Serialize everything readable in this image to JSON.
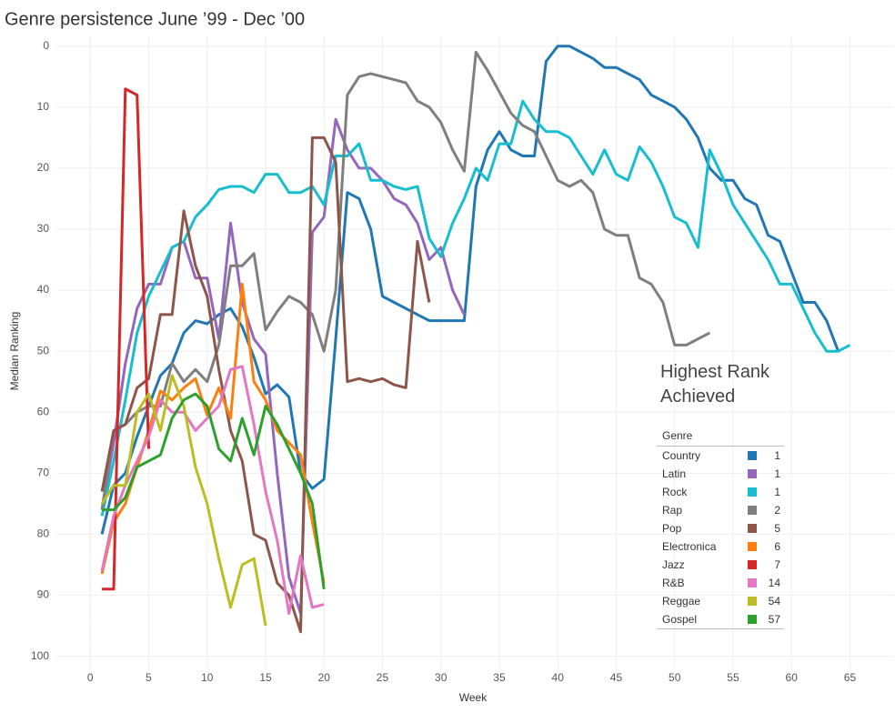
{
  "chart_data": {
    "type": "line",
    "title": "Genre persistence June ’99 - Dec ’00",
    "x_label": "Week",
    "y_label": "Median Ranking",
    "legend_title": "Highest Rank Achieved",
    "legend_header": "Genre",
    "x": [
      1,
      2,
      3,
      4,
      5,
      6,
      7,
      8,
      9,
      10,
      11,
      12,
      13,
      14,
      15,
      16,
      17,
      18,
      19,
      20,
      21,
      22,
      23,
      24,
      25,
      26,
      27,
      28,
      29,
      30,
      31,
      32,
      33,
      34,
      35,
      36,
      37,
      38,
      39,
      40,
      41,
      42,
      43,
      44,
      45,
      46,
      47,
      48,
      49,
      50,
      51,
      52,
      53,
      54,
      55,
      56,
      57,
      58,
      59,
      60,
      61,
      62,
      63,
      64,
      65
    ],
    "xlim": [
      -2.9,
      68.7
    ],
    "xticks": [
      0,
      5,
      10,
      15,
      20,
      25,
      30,
      35,
      40,
      45,
      50,
      55,
      60,
      65
    ],
    "ylim": [
      102,
      -1.6
    ],
    "yticks": [
      0,
      10,
      20,
      30,
      40,
      50,
      60,
      70,
      80,
      90,
      100
    ],
    "grid": true,
    "series": [
      {
        "name": "Country",
        "color": "#1f77b4",
        "best": 1,
        "values": [
          80,
          72,
          70,
          64,
          59,
          54,
          52,
          47,
          45,
          45.5,
          44,
          43,
          46,
          51,
          57,
          55.5,
          57.5,
          70,
          72.5,
          71,
          48,
          24,
          25,
          30,
          41,
          42,
          43,
          44,
          45,
          45,
          45,
          45,
          23,
          17,
          14,
          17,
          18,
          18,
          2.5,
          0,
          0,
          1,
          2,
          3.5,
          3.5,
          4.5,
          5.5,
          8,
          9,
          10,
          12,
          15,
          20,
          22,
          22,
          25,
          26,
          31,
          32,
          37,
          42,
          42,
          45,
          50,
          null
        ]
      },
      {
        "name": "Latin",
        "color": "#9467bd",
        "best": 1,
        "values": [
          76,
          65,
          52,
          43,
          39,
          39,
          33,
          32,
          38,
          38,
          48,
          29,
          42,
          48,
          50.5,
          70,
          87,
          93,
          30.5,
          28,
          12,
          17,
          20,
          20,
          22,
          25,
          26,
          29,
          35,
          33,
          40,
          44,
          null,
          null,
          null,
          null,
          null,
          null,
          null,
          null,
          null,
          null,
          null,
          null,
          null,
          null,
          null,
          null,
          null,
          null,
          null,
          null,
          null,
          null,
          null,
          null,
          null,
          null,
          null,
          null,
          null,
          null,
          null,
          null,
          null
        ]
      },
      {
        "name": "Rock",
        "color": "#17becf",
        "best": 1,
        "values": [
          77,
          68,
          58,
          47,
          41,
          37,
          33,
          32,
          28,
          26,
          23.5,
          23,
          23,
          24,
          21,
          21,
          24,
          24,
          23,
          26,
          18,
          18,
          16,
          22,
          22,
          23,
          23.5,
          23,
          31.5,
          34.5,
          29,
          25,
          20,
          22,
          16,
          16,
          9,
          12,
          14,
          14,
          15,
          18,
          21,
          17,
          21,
          22,
          16.5,
          19,
          23,
          28,
          29,
          33,
          17,
          21,
          26,
          29,
          32,
          35,
          39,
          39,
          43,
          47,
          50,
          50,
          49
        ]
      },
      {
        "name": "Rap",
        "color": "#7f7f7f",
        "best": 2,
        "values": [
          76,
          63,
          62,
          60,
          59,
          59,
          52,
          55,
          53,
          55,
          49,
          36,
          36,
          34,
          46.5,
          43.5,
          41,
          42,
          44,
          50,
          40,
          8,
          5,
          4.5,
          5,
          5.5,
          6,
          9,
          10,
          12.5,
          17,
          20.5,
          1,
          4,
          7.5,
          11,
          13,
          14,
          18,
          22,
          23,
          22,
          24,
          30,
          31,
          31,
          38,
          39,
          42,
          49,
          49,
          48,
          47,
          null,
          null,
          null,
          null,
          null,
          null,
          null,
          null,
          null,
          null,
          null,
          null
        ]
      },
      {
        "name": "Pop",
        "color": "#8c564b",
        "best": 5,
        "values": [
          73,
          63,
          62,
          56,
          54.5,
          44,
          44,
          27,
          36,
          41,
          53,
          63,
          68,
          80,
          81,
          88,
          90,
          96,
          15,
          15,
          19,
          55,
          54.5,
          55,
          54.5,
          55.5,
          56,
          32,
          42,
          null,
          null,
          null,
          null,
          null,
          null,
          null,
          null,
          null,
          null,
          null,
          null,
          null,
          null,
          null,
          null,
          null,
          null,
          null,
          null,
          null,
          null,
          null,
          null,
          null,
          null,
          null,
          null,
          null,
          null,
          null,
          null,
          null,
          null,
          null,
          null
        ]
      },
      {
        "name": "Electronica",
        "color": "#ff7f0e",
        "best": 6,
        "values": [
          86.5,
          78,
          75,
          69,
          63,
          56.5,
          58,
          56,
          54.5,
          60.5,
          56,
          61,
          39,
          55,
          58,
          63,
          65,
          67,
          78,
          88,
          null,
          null,
          null,
          null,
          null,
          null,
          null,
          null,
          null,
          null,
          null,
          null,
          null,
          null,
          null,
          null,
          null,
          null,
          null,
          null,
          null,
          null,
          null,
          null,
          null,
          null,
          null,
          null,
          null,
          null,
          null,
          null,
          null,
          null,
          null,
          null,
          null,
          null,
          null,
          null,
          null,
          null,
          null,
          null,
          null
        ]
      },
      {
        "name": "Jazz",
        "color": "#d62728",
        "best": 7,
        "values": [
          89,
          89,
          7,
          8,
          66,
          null,
          null,
          null,
          null,
          null,
          null,
          null,
          null,
          null,
          null,
          null,
          null,
          null,
          null,
          null,
          null,
          null,
          null,
          null,
          null,
          null,
          null,
          null,
          null,
          null,
          null,
          null,
          null,
          null,
          null,
          null,
          null,
          null,
          null,
          null,
          null,
          null,
          null,
          null,
          null,
          null,
          null,
          null,
          null,
          null,
          null,
          null,
          null,
          null,
          null,
          null,
          null,
          null,
          null,
          null,
          null,
          null,
          null,
          null,
          null
        ]
      },
      {
        "name": "R&B",
        "color": "#e377c2",
        "best": 14,
        "values": [
          86,
          77,
          72,
          68,
          64,
          58,
          60,
          60,
          63,
          61,
          59,
          53,
          52.5,
          62,
          73,
          81,
          93,
          83.5,
          92,
          91.5,
          null,
          null,
          null,
          null,
          null,
          null,
          null,
          null,
          null,
          null,
          null,
          null,
          null,
          null,
          null,
          null,
          null,
          null,
          null,
          null,
          null,
          null,
          null,
          null,
          null,
          null,
          null,
          null,
          null,
          null,
          null,
          null,
          null,
          null,
          null,
          null,
          null,
          null,
          null,
          null,
          null,
          null,
          null,
          null,
          null
        ]
      },
      {
        "name": "Reggae",
        "color": "#bcbd22",
        "best": 54,
        "values": [
          75,
          72,
          72,
          60,
          57,
          63,
          54,
          59,
          69,
          75,
          84,
          92,
          85,
          84,
          95,
          null,
          null,
          null,
          null,
          null,
          null,
          null,
          null,
          null,
          null,
          null,
          null,
          null,
          null,
          null,
          null,
          null,
          null,
          null,
          null,
          null,
          null,
          null,
          null,
          null,
          null,
          null,
          null,
          null,
          null,
          null,
          null,
          null,
          null,
          null,
          null,
          null,
          null,
          null,
          null,
          null,
          null,
          null,
          null,
          null,
          null,
          null,
          null,
          null,
          null
        ]
      },
      {
        "name": "Gospel",
        "color": "#2ca02c",
        "best": 57,
        "values": [
          76,
          76,
          74,
          69,
          68,
          67,
          61,
          58,
          57,
          59,
          66,
          68,
          61,
          67,
          59,
          62,
          66,
          70,
          75,
          89,
          null,
          null,
          null,
          null,
          null,
          null,
          null,
          null,
          null,
          null,
          null,
          null,
          null,
          null,
          null,
          null,
          null,
          null,
          null,
          null,
          null,
          null,
          null,
          null,
          null,
          null,
          null,
          null,
          null,
          null,
          null,
          null,
          null,
          null,
          null,
          null,
          null,
          null,
          null,
          null,
          null,
          null,
          null,
          null,
          null
        ]
      }
    ]
  }
}
